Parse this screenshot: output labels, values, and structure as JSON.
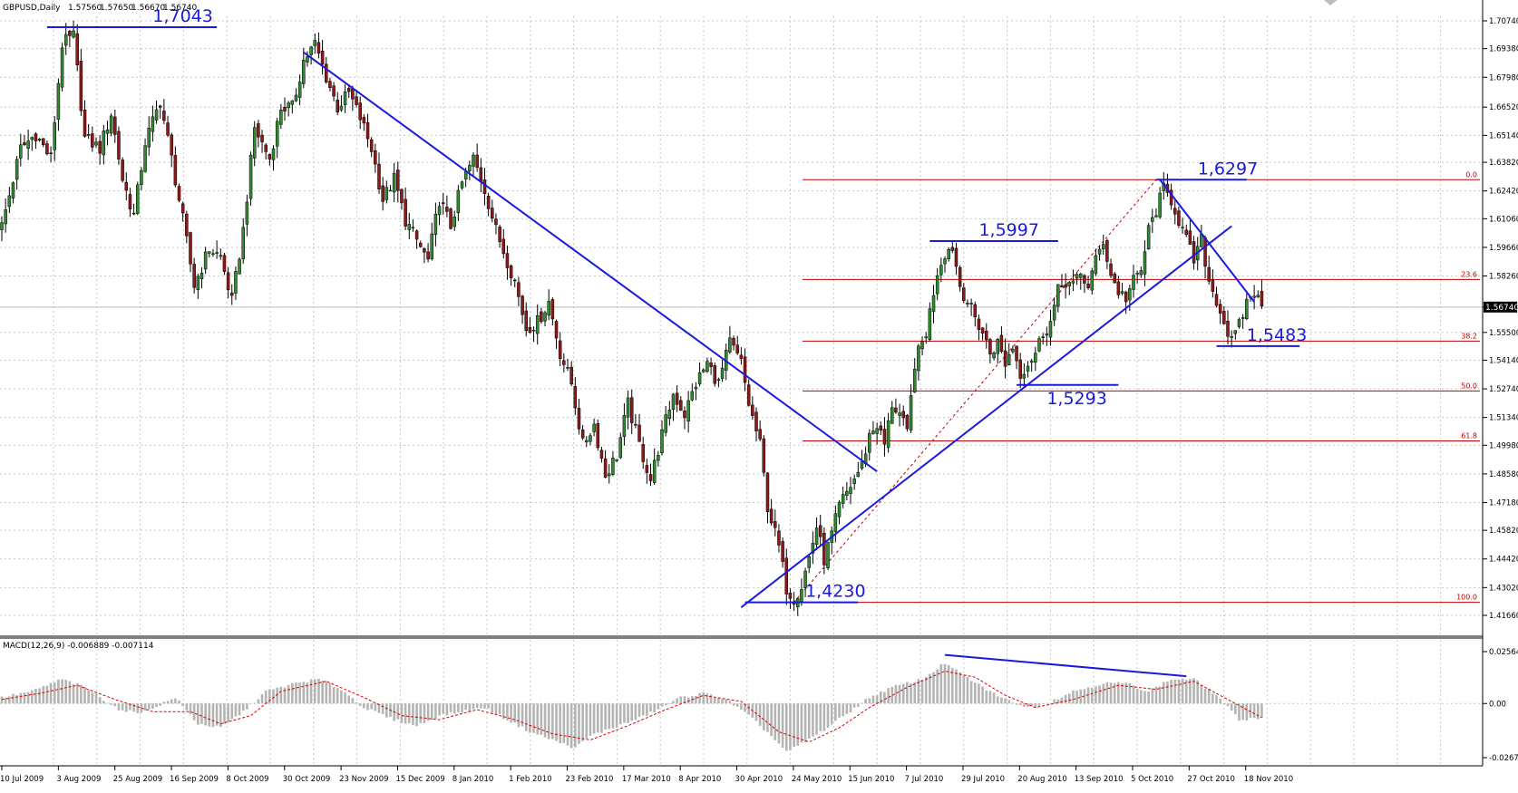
{
  "header": {
    "symbol": "GBPUSD,Daily",
    "open": "1.57560",
    "high": "1.57650",
    "low": "1.56670",
    "close": "1.56740"
  },
  "macd": {
    "label": "MACD(12,26,9) -0.006889 -0.007114",
    "ticks": [
      "0.025642",
      "0.00",
      "-0.02676"
    ]
  },
  "colors": {
    "bull": "#2e8b2e",
    "bear": "#8b1a1a",
    "drawing": "#1a1adc",
    "fibo": "#c00000",
    "histogram": "#b4b4b4",
    "signal": "#dc0000",
    "grid": "#c8c8c8",
    "current_price_box": "#000000"
  },
  "chart_data": [
    {
      "type": "candlestick",
      "title": "GBPUSD,Daily",
      "ylim": [
        1.4118,
        1.714
      ],
      "y_ticks": [
        "1.70740",
        "1.69380",
        "1.67980",
        "1.66520",
        "1.65140",
        "1.63820",
        "1.62420",
        "1.61060",
        "1.59660",
        "1.58260",
        "1.56740",
        "1.55500",
        "1.54140",
        "1.52740",
        "1.51340",
        "1.49980",
        "1.48580",
        "1.47180",
        "1.45820",
        "1.44420",
        "1.43020",
        "1.41660"
      ],
      "x_tick_labels": [
        "10 Jul 2009",
        "3 Aug 2009",
        "25 Aug 2009",
        "16 Sep 2009",
        "8 Oct 2009",
        "30 Oct 2009",
        "23 Nov 2009",
        "15 Dec 2009",
        "8 Jan 2010",
        "1 Feb 2010",
        "23 Feb 2010",
        "17 Mar 2010",
        "8 Apr 2010",
        "30 Apr 2010",
        "24 May 2010",
        "15 Jun 2010",
        "7 Jul 2010",
        "29 Jul 2010",
        "20 Aug 2010",
        "13 Sep 2010",
        "5 Oct 2010",
        "27 Oct 2010",
        "18 Nov 2010"
      ],
      "current_price": 1.5674,
      "close_path": [
        [
          0,
          1.607
        ],
        [
          5,
          1.645
        ],
        [
          9,
          1.652
        ],
        [
          13,
          1.64
        ],
        [
          16,
          1.696
        ],
        [
          19,
          1.7
        ],
        [
          22,
          1.65
        ],
        [
          26,
          1.645
        ],
        [
          29,
          1.662
        ],
        [
          32,
          1.63
        ],
        [
          35,
          1.612
        ],
        [
          38,
          1.648
        ],
        [
          42,
          1.668
        ],
        [
          45,
          1.64
        ],
        [
          48,
          1.61
        ],
        [
          51,
          1.578
        ],
        [
          55,
          1.596
        ],
        [
          58,
          1.592
        ],
        [
          61,
          1.57
        ],
        [
          64,
          1.605
        ],
        [
          67,
          1.655
        ],
        [
          71,
          1.64
        ],
        [
          74,
          1.665
        ],
        [
          77,
          1.665
        ],
        [
          80,
          1.688
        ],
        [
          83,
          1.696
        ],
        [
          86,
          1.68
        ],
        [
          89,
          1.665
        ],
        [
          92,
          1.672
        ],
        [
          95,
          1.66
        ],
        [
          98,
          1.645
        ],
        [
          101,
          1.62
        ],
        [
          104,
          1.63
        ],
        [
          107,
          1.61
        ],
        [
          110,
          1.6
        ],
        [
          113,
          1.59
        ],
        [
          116,
          1.62
        ],
        [
          119,
          1.607
        ],
        [
          122,
          1.628
        ],
        [
          125,
          1.64
        ],
        [
          128,
          1.625
        ],
        [
          131,
          1.605
        ],
        [
          134,
          1.59
        ],
        [
          136,
          1.58
        ],
        [
          139,
          1.557
        ],
        [
          142,
          1.56
        ],
        [
          145,
          1.57
        ],
        [
          148,
          1.545
        ],
        [
          151,
          1.53
        ],
        [
          154,
          1.5
        ],
        [
          157,
          1.51
        ],
        [
          160,
          1.485
        ],
        [
          163,
          1.495
        ],
        [
          166,
          1.52
        ],
        [
          169,
          1.5
        ],
        [
          172,
          1.483
        ],
        [
          175,
          1.505
        ],
        [
          178,
          1.525
        ],
        [
          181,
          1.515
        ],
        [
          184,
          1.53
        ],
        [
          187,
          1.54
        ],
        [
          190,
          1.53
        ],
        [
          193,
          1.55
        ],
        [
          196,
          1.54
        ],
        [
          198,
          1.52
        ],
        [
          201,
          1.5
        ],
        [
          203,
          1.47
        ],
        [
          206,
          1.45
        ],
        [
          208,
          1.43
        ],
        [
          210,
          1.425
        ],
        [
          212,
          1.431
        ],
        [
          214,
          1.445
        ],
        [
          216,
          1.46
        ],
        [
          218,
          1.444
        ],
        [
          220,
          1.456
        ],
        [
          222,
          1.47
        ],
        [
          225,
          1.48
        ],
        [
          228,
          1.49
        ],
        [
          230,
          1.505
        ],
        [
          232,
          1.51
        ],
        [
          234,
          1.5
        ],
        [
          236,
          1.52
        ],
        [
          238,
          1.515
        ],
        [
          240,
          1.505
        ],
        [
          242,
          1.54
        ],
        [
          245,
          1.555
        ],
        [
          248,
          1.585
        ],
        [
          250,
          1.594
        ],
        [
          252,
          1.597
        ],
        [
          254,
          1.578
        ],
        [
          256,
          1.57
        ],
        [
          258,
          1.562
        ],
        [
          260,
          1.555
        ],
        [
          262,
          1.545
        ],
        [
          264,
          1.55
        ],
        [
          266,
          1.54
        ],
        [
          268,
          1.548
        ],
        [
          270,
          1.535
        ],
        [
          272,
          1.54
        ],
        [
          274,
          1.545
        ],
        [
          276,
          1.555
        ],
        [
          278,
          1.56
        ],
        [
          280,
          1.575
        ],
        [
          282,
          1.58
        ],
        [
          284,
          1.578
        ],
        [
          286,
          1.583
        ],
        [
          288,
          1.578
        ],
        [
          290,
          1.59
        ],
        [
          292,
          1.6
        ],
        [
          294,
          1.583
        ],
        [
          296,
          1.575
        ],
        [
          298,
          1.572
        ],
        [
          300,
          1.58
        ],
        [
          302,
          1.585
        ],
        [
          304,
          1.605
        ],
        [
          306,
          1.615
        ],
        [
          308,
          1.625
        ],
        [
          310,
          1.62
        ],
        [
          312,
          1.61
        ],
        [
          314,
          1.6
        ],
        [
          316,
          1.59
        ],
        [
          318,
          1.6
        ],
        [
          320,
          1.58
        ],
        [
          322,
          1.571
        ],
        [
          324,
          1.56
        ],
        [
          326,
          1.55
        ],
        [
          328,
          1.558
        ],
        [
          330,
          1.57
        ],
        [
          332,
          1.575
        ],
        [
          334,
          1.567
        ]
      ],
      "annotations": {
        "levels": [
          "1,7043",
          "1,6297",
          "1,5997",
          "1,5483",
          "1,5293",
          "1,4230"
        ],
        "fibonacci": [
          "0.0",
          "23.6",
          "38.2",
          "50.0",
          "61.8",
          "100.0"
        ]
      }
    },
    {
      "type": "bar",
      "title": "MACD(12,26,9)",
      "macd_line_value": -0.006889,
      "signal_value": -0.007114,
      "ylim": [
        -0.02676,
        0.025642
      ],
      "macd_path": [
        [
          0,
          0.003
        ],
        [
          8,
          0.006
        ],
        [
          16,
          0.012
        ],
        [
          22,
          0.008
        ],
        [
          32,
          -0.004
        ],
        [
          38,
          -0.004
        ],
        [
          46,
          0.003
        ],
        [
          52,
          -0.01
        ],
        [
          58,
          -0.012
        ],
        [
          64,
          -0.004
        ],
        [
          70,
          0.006
        ],
        [
          78,
          0.01
        ],
        [
          84,
          0.012
        ],
        [
          90,
          0.007
        ],
        [
          96,
          -0.002
        ],
        [
          104,
          -0.008
        ],
        [
          110,
          -0.011
        ],
        [
          116,
          -0.006
        ],
        [
          122,
          -0.004
        ],
        [
          128,
          -0.002
        ],
        [
          134,
          -0.008
        ],
        [
          140,
          -0.014
        ],
        [
          146,
          -0.018
        ],
        [
          152,
          -0.022
        ],
        [
          156,
          -0.016
        ],
        [
          162,
          -0.012
        ],
        [
          168,
          -0.008
        ],
        [
          174,
          -0.003
        ],
        [
          180,
          0.003
        ],
        [
          186,
          0.005
        ],
        [
          192,
          0.002
        ],
        [
          198,
          -0.006
        ],
        [
          204,
          -0.016
        ],
        [
          208,
          -0.024
        ],
        [
          212,
          -0.02
        ],
        [
          218,
          -0.013
        ],
        [
          224,
          -0.005
        ],
        [
          230,
          0.003
        ],
        [
          236,
          0.008
        ],
        [
          244,
          0.012
        ],
        [
          250,
          0.02
        ],
        [
          254,
          0.015
        ],
        [
          260,
          0.008
        ],
        [
          266,
          0.002
        ],
        [
          272,
          -0.002
        ],
        [
          278,
          0.001
        ],
        [
          284,
          0.006
        ],
        [
          292,
          0.01
        ],
        [
          298,
          0.01
        ],
        [
          304,
          0.006
        ],
        [
          310,
          0.012
        ],
        [
          316,
          0.012
        ],
        [
          322,
          0.004
        ],
        [
          328,
          -0.008
        ],
        [
          334,
          -0.007
        ]
      ],
      "signal_path": [
        [
          0,
          0.002
        ],
        [
          10,
          0.005
        ],
        [
          20,
          0.009
        ],
        [
          30,
          0.002
        ],
        [
          40,
          -0.004
        ],
        [
          50,
          -0.004
        ],
        [
          58,
          -0.01
        ],
        [
          66,
          -0.006
        ],
        [
          74,
          0.006
        ],
        [
          86,
          0.011
        ],
        [
          96,
          0.003
        ],
        [
          106,
          -0.006
        ],
        [
          116,
          -0.008
        ],
        [
          126,
          -0.003
        ],
        [
          136,
          -0.008
        ],
        [
          146,
          -0.015
        ],
        [
          156,
          -0.018
        ],
        [
          166,
          -0.011
        ],
        [
          176,
          -0.003
        ],
        [
          186,
          0.004
        ],
        [
          196,
          0.001
        ],
        [
          206,
          -0.014
        ],
        [
          214,
          -0.019
        ],
        [
          222,
          -0.012
        ],
        [
          230,
          -0.002
        ],
        [
          240,
          0.008
        ],
        [
          250,
          0.016
        ],
        [
          258,
          0.013
        ],
        [
          266,
          0.004
        ],
        [
          274,
          -0.002
        ],
        [
          284,
          0.002
        ],
        [
          296,
          0.009
        ],
        [
          306,
          0.007
        ],
        [
          316,
          0.011
        ],
        [
          326,
          0.001
        ],
        [
          334,
          -0.007
        ]
      ]
    }
  ]
}
